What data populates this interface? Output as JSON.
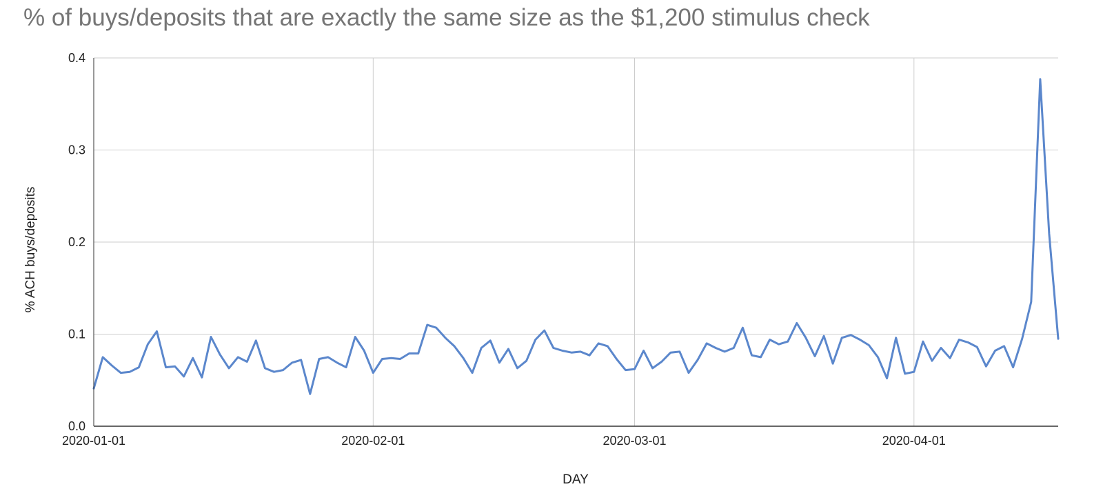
{
  "chart_data": {
    "type": "line",
    "title": "% of buys/deposits that are exactly the same size as the $1,200 stimulus check",
    "xlabel": "DAY",
    "ylabel": "% ACH buys/deposits",
    "ylim": [
      0,
      0.4
    ],
    "yticks": [
      "0.0",
      "0.1",
      "0.2",
      "0.3",
      "0.4"
    ],
    "xticks": [
      "2020-01-01",
      "2020-02-01",
      "2020-03-01",
      "2020-04-01"
    ],
    "xlim": [
      "2020-01-01",
      "2020-04-17"
    ],
    "grid": true,
    "line_color": "#5b87cc",
    "series": [
      {
        "x": [
          "2020-01-01",
          "2020-01-02",
          "2020-01-03",
          "2020-01-04",
          "2020-01-05",
          "2020-01-06",
          "2020-01-07",
          "2020-01-08",
          "2020-01-09",
          "2020-01-10",
          "2020-01-11",
          "2020-01-12",
          "2020-01-13",
          "2020-01-14",
          "2020-01-15",
          "2020-01-16",
          "2020-01-17",
          "2020-01-18",
          "2020-01-19",
          "2020-01-20",
          "2020-01-21",
          "2020-01-22",
          "2020-01-23",
          "2020-01-24",
          "2020-01-25",
          "2020-01-26",
          "2020-01-27",
          "2020-01-28",
          "2020-01-29",
          "2020-01-30",
          "2020-01-31",
          "2020-02-01",
          "2020-02-02",
          "2020-02-03",
          "2020-02-04",
          "2020-02-05",
          "2020-02-06",
          "2020-02-07",
          "2020-02-08",
          "2020-02-09",
          "2020-02-10",
          "2020-02-11",
          "2020-02-12",
          "2020-02-13",
          "2020-02-14",
          "2020-02-15",
          "2020-02-16",
          "2020-02-17",
          "2020-02-18",
          "2020-02-19",
          "2020-02-20",
          "2020-02-21",
          "2020-02-22",
          "2020-02-23",
          "2020-02-24",
          "2020-02-25",
          "2020-02-26",
          "2020-02-27",
          "2020-02-28",
          "2020-02-29",
          "2020-03-01",
          "2020-03-02",
          "2020-03-03",
          "2020-03-04",
          "2020-03-05",
          "2020-03-06",
          "2020-03-07",
          "2020-03-08",
          "2020-03-09",
          "2020-03-10",
          "2020-03-11",
          "2020-03-12",
          "2020-03-13",
          "2020-03-14",
          "2020-03-15",
          "2020-03-16",
          "2020-03-17",
          "2020-03-18",
          "2020-03-19",
          "2020-03-20",
          "2020-03-21",
          "2020-03-22",
          "2020-03-23",
          "2020-03-24",
          "2020-03-25",
          "2020-03-26",
          "2020-03-27",
          "2020-03-28",
          "2020-03-29",
          "2020-03-30",
          "2020-03-31",
          "2020-04-01",
          "2020-04-02",
          "2020-04-03",
          "2020-04-04",
          "2020-04-05",
          "2020-04-06",
          "2020-04-07",
          "2020-04-08",
          "2020-04-09",
          "2020-04-10",
          "2020-04-11",
          "2020-04-12",
          "2020-04-13",
          "2020-04-14",
          "2020-04-15",
          "2020-04-16",
          "2020-04-17"
        ],
        "y": [
          0.041,
          0.075,
          0.066,
          0.058,
          0.059,
          0.064,
          0.089,
          0.103,
          0.064,
          0.065,
          0.054,
          0.074,
          0.053,
          0.097,
          0.078,
          0.063,
          0.075,
          0.07,
          0.093,
          0.063,
          0.059,
          0.061,
          0.069,
          0.072,
          0.035,
          0.073,
          0.075,
          0.069,
          0.064,
          0.097,
          0.082,
          0.058,
          0.073,
          0.074,
          0.073,
          0.079,
          0.079,
          0.11,
          0.107,
          0.096,
          0.087,
          0.074,
          0.058,
          0.085,
          0.093,
          0.069,
          0.084,
          0.063,
          0.071,
          0.094,
          0.104,
          0.085,
          0.082,
          0.08,
          0.081,
          0.077,
          0.09,
          0.087,
          0.073,
          0.061,
          0.062,
          0.082,
          0.063,
          0.07,
          0.08,
          0.081,
          0.058,
          0.072,
          0.09,
          0.085,
          0.081,
          0.085,
          0.107,
          0.077,
          0.075,
          0.094,
          0.089,
          0.092,
          0.112,
          0.096,
          0.076,
          0.098,
          0.068,
          0.096,
          0.099,
          0.094,
          0.088,
          0.075,
          0.052,
          0.096,
          0.057,
          0.059,
          0.092,
          0.071,
          0.085,
          0.074,
          0.094,
          0.091,
          0.086,
          0.065,
          0.082,
          0.087,
          0.064,
          0.095,
          0.135,
          0.377,
          0.209,
          0.095
        ]
      }
    ]
  }
}
